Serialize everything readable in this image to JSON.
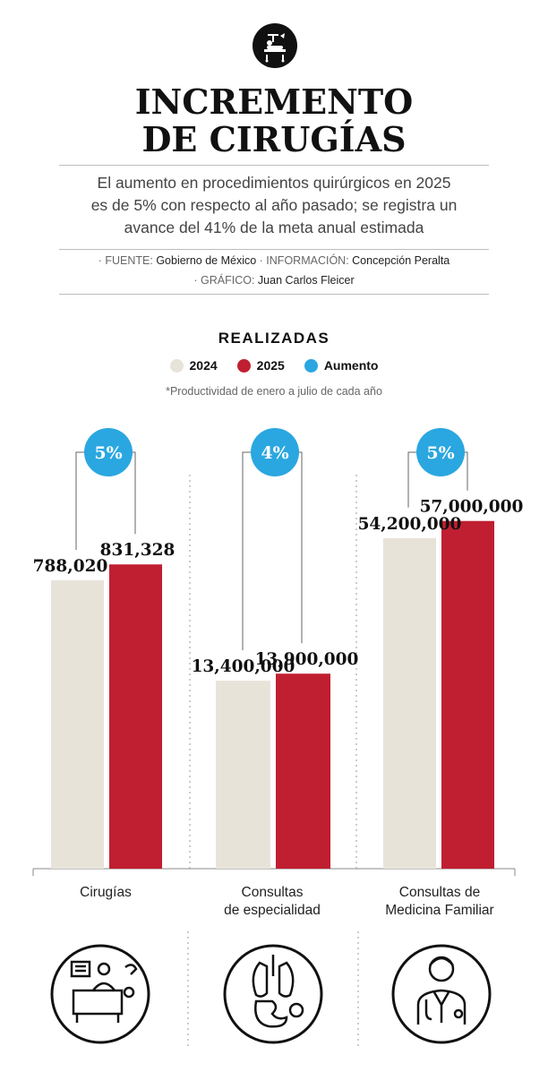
{
  "header": {
    "title_line1": "INCREMENTO",
    "title_line2": "DE CIRUGÍAS",
    "subtitle_line1": "El aumento en procedimientos quirúrgicos en 2025",
    "subtitle_line2": "es de 5% con respecto al año pasado; se registra un",
    "subtitle_line3": "avance del 41% de la meta anual estimada",
    "credits": {
      "fuente_label": "· FUENTE:",
      "fuente_value": "Gobierno de México",
      "info_label": "· INFORMACIÓN:",
      "info_value": "Concepción Peralta",
      "grafico_label": "· GRÁFICO:",
      "grafico_value": "Juan Carlos Fleicer"
    }
  },
  "colors": {
    "c2024": "#e8e3d9",
    "c2025": "#c01f31",
    "aumento": "#2aa7e0"
  },
  "chart_data": {
    "type": "bar",
    "title": "REALIZADAS",
    "note": "*Productividad de enero a julio de cada año",
    "legend": [
      "2024",
      "2025",
      "Aumento"
    ],
    "categories": [
      {
        "line1": "Cirugías",
        "line2": ""
      },
      {
        "line1": "Consultas",
        "line2": "de especialidad"
      },
      {
        "line1": "Consultas de",
        "line2": "Medicina Familiar"
      }
    ],
    "groups": [
      {
        "v2024": 788020,
        "v2025": 831328,
        "label2024": "788,020",
        "label2025": "831,328",
        "aumento": "5%",
        "scale_max": 1150000
      },
      {
        "v2024": 13400000,
        "v2025": 13900000,
        "label2024": "13,400,000",
        "label2025": "13,900,000",
        "aumento": "4%",
        "scale_max": 30000000
      },
      {
        "v2024": 54200000,
        "v2025": 57000000,
        "label2024": "54,200,000",
        "label2025": "57,000,000",
        "aumento": "5%",
        "scale_max": 69000000
      }
    ],
    "icons": [
      "surgery-icon",
      "organs-icon",
      "doctor-icon"
    ]
  }
}
